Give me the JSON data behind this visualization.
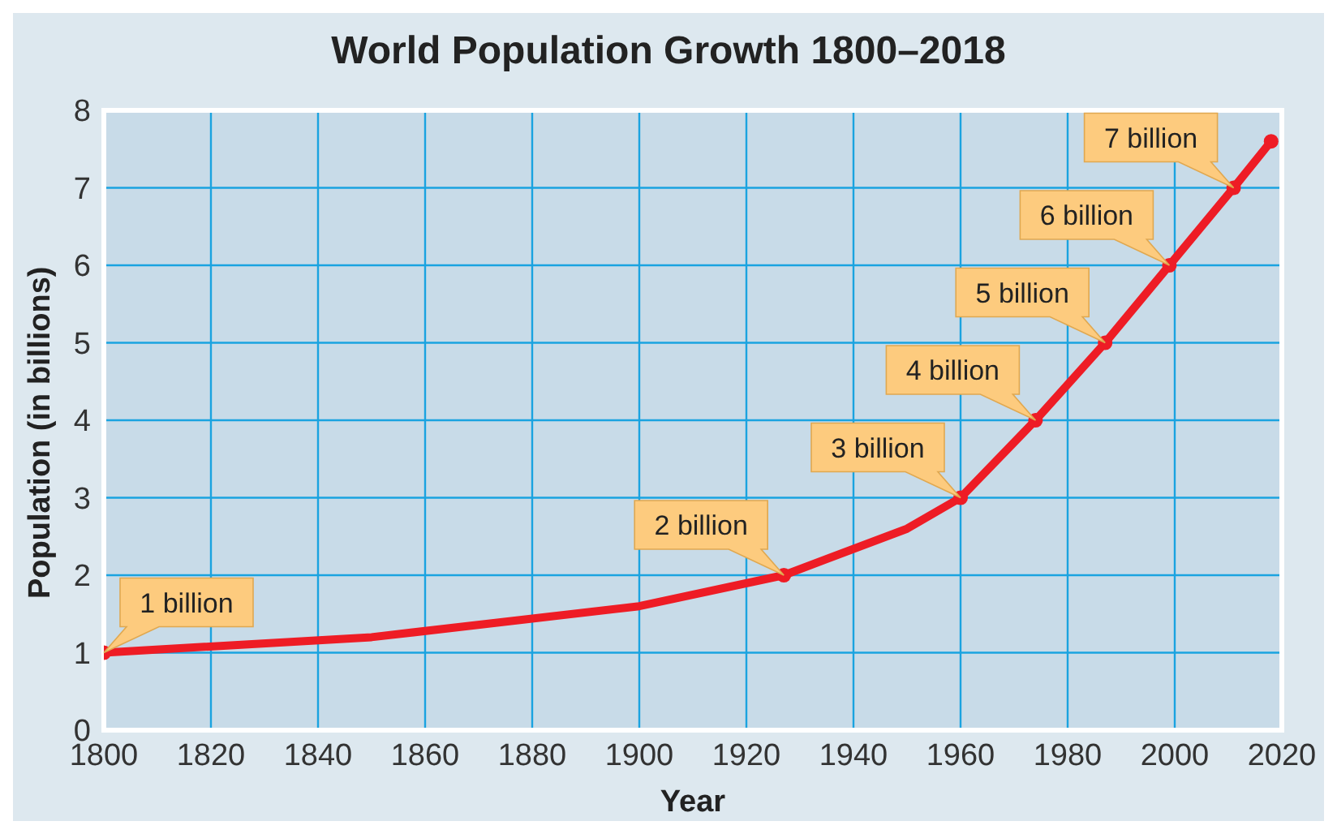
{
  "chart_data": {
    "type": "line",
    "title": "World Population Growth 1800–2018",
    "xlabel": "Year",
    "ylabel": "Population (in billions)",
    "series": [
      {
        "color": "#ee1c25",
        "marker": "none",
        "x": [
          1800,
          1850,
          1900,
          1927,
          1950,
          1960,
          1974,
          1987,
          1999,
          2011,
          2018
        ],
        "values": [
          1,
          1.2,
          1.6,
          2,
          2.6,
          3,
          4,
          5,
          6,
          7,
          7.6
        ]
      },
      {
        "type": "scatter",
        "color": "#ee1c25",
        "marker": "circle",
        "x": [
          1800,
          1927,
          1960,
          1974,
          1987,
          1999,
          2011,
          2018
        ],
        "values": [
          1,
          2,
          3,
          4,
          5,
          6,
          7,
          7.6
        ]
      }
    ],
    "annotations": [
      {
        "text": "1 billion",
        "x": 1800,
        "y": 1
      },
      {
        "text": "2 billion",
        "x": 1927,
        "y": 2
      },
      {
        "text": "3 billion",
        "x": 1960,
        "y": 3
      },
      {
        "text": "4 billion",
        "x": 1974,
        "y": 4
      },
      {
        "text": "5 billion",
        "x": 1987,
        "y": 5
      },
      {
        "text": "6 billion",
        "x": 1999,
        "y": 6
      },
      {
        "text": "7 billion",
        "x": 2011,
        "y": 7
      }
    ],
    "xlim": [
      1800,
      2020
    ],
    "xticks": [
      1800,
      1820,
      1840,
      1860,
      1880,
      1900,
      1920,
      1940,
      1960,
      1980,
      2000,
      2020
    ],
    "ylim": [
      0,
      8
    ],
    "yticks": [
      0,
      1,
      2,
      3,
      4,
      5,
      6,
      7,
      8
    ],
    "grid": true
  }
}
